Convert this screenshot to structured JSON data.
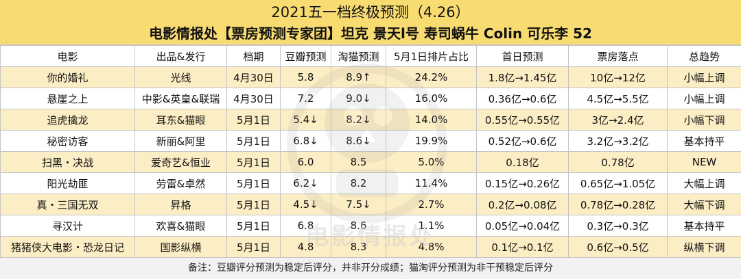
{
  "title": {
    "line1": "2021五一档终极预测（4.26）",
    "line2": "电影情报处【票房预测专家团】坦克 景天l号 寿司蜗牛 Colin 可乐李 52"
  },
  "table": {
    "headers": [
      "电影",
      "出品&发行",
      "档期",
      "豆瓣预测",
      "淘猫预测",
      "5月1日排片占比",
      "首日预测",
      "票房落点",
      "总趋势"
    ],
    "rows": [
      [
        "你的婚礼",
        "光线",
        "4月30日",
        "5.8",
        "8.9↑",
        "24.2%",
        "1.8亿→1.45亿",
        "10亿→12亿",
        "小幅上调"
      ],
      [
        "悬崖之上",
        "中影&英皇&联瑞",
        "4月30日",
        "7.2",
        "9.0↓",
        "16.0%",
        "0.36亿→0.6亿",
        "4.5亿→5.5亿",
        "小幅上调"
      ],
      [
        "追虎擒龙",
        "耳东&猫眼",
        "5月1日",
        "5.4↓",
        "8.2↓",
        "14.0%",
        "0.55亿→0.55亿",
        "3亿→2.4亿",
        "小幅下调"
      ],
      [
        "秘密访客",
        "新丽&阿里",
        "5月1日",
        "6.8↓",
        "8.6↓",
        "19.9%",
        "0.52亿→0.6亿",
        "3.2亿→3.2亿",
        "基本持平"
      ],
      [
        "扫黑・决战",
        "爱奇艺&恒业",
        "5月1日",
        "6.0",
        "8.5",
        "5.0%",
        "0.18亿",
        "0.78亿",
        "NEW"
      ],
      [
        "阳光劫匪",
        "劳雷&卓然",
        "5月1日",
        "6.2↓",
        "8.2",
        "11.4%",
        "0.15亿→0.26亿",
        "0.65亿→1.05亿",
        "大幅上调"
      ],
      [
        "真・三国无双",
        "昇格",
        "5月1日",
        "4.5↓",
        "7.5↓",
        "2.7%",
        "0.2亿→0.08亿",
        "0.78亿→0.28亿",
        "大幅下调"
      ],
      [
        "寻汉计",
        "欢喜&猫眼",
        "5月1日",
        "6.8",
        "8.6",
        "1.1%",
        "0.05亿→0.04亿",
        "0.3亿→0.3亿",
        "基本持平"
      ],
      [
        "猪猪侠大电影・恐龙日记",
        "国影纵横",
        "5月1日",
        "4.8",
        "8.3",
        "4.8%",
        "0.1亿→0.1亿",
        "0.6亿→0.5亿",
        "纵横下调"
      ]
    ]
  },
  "footnote": "备注：豆瓣评分预测为稳定后评分，并非开分成绩；猫淘评分预测为非干预稳定后评分",
  "watermark": "电影情报处",
  "colors": {
    "title_bg": "#f8dc72",
    "stripe": "#fbedc4",
    "footnote_bg": "#f2f2f2",
    "border": "#c4c4c4"
  }
}
